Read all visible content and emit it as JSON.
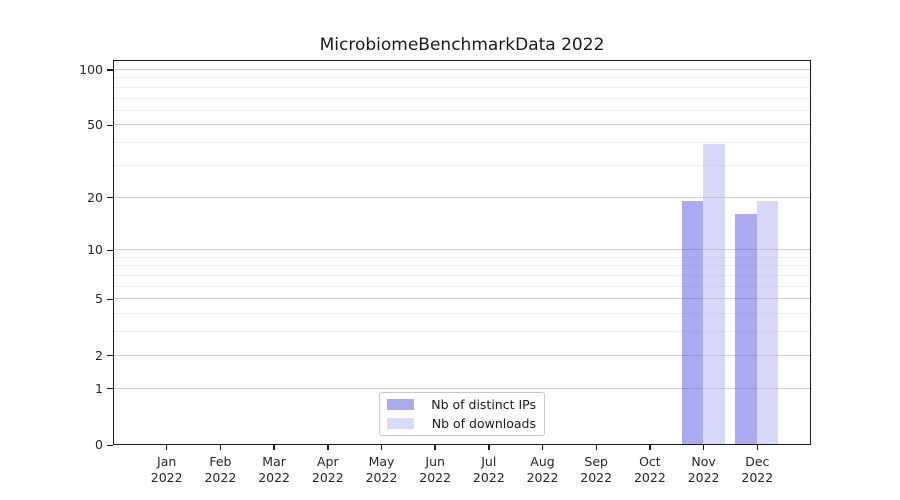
{
  "title": "MicrobiomeBenchmarkData 2022",
  "chart_data": {
    "type": "bar",
    "title": "MicrobiomeBenchmarkData 2022",
    "categories": [
      "Jan 2022",
      "Feb 2022",
      "Mar 2022",
      "Apr 2022",
      "May 2022",
      "Jun 2022",
      "Jul 2022",
      "Aug 2022",
      "Sep 2022",
      "Oct 2022",
      "Nov 2022",
      "Dec 2022"
    ],
    "series": [
      {
        "name": "Nb of distinct IPs",
        "fill": "rgba(85,85,225,0.5)",
        "legend_color": "#aaaaef",
        "values": [
          0,
          0,
          0,
          0,
          0,
          0,
          0,
          0,
          0,
          0,
          19,
          16
        ]
      },
      {
        "name": "Nb of downloads",
        "fill": "rgba(177,177,241,0.5)",
        "legend_color": "#d9d9f8",
        "values": [
          0,
          0,
          0,
          0,
          0,
          0,
          0,
          0,
          0,
          0,
          39,
          19
        ]
      }
    ],
    "yscale": "log1p",
    "ylim": [
      0,
      113
    ],
    "yticks_major": [
      0,
      1,
      2,
      5,
      10,
      20,
      50,
      100
    ],
    "yticks_minor": [
      3,
      4,
      6,
      7,
      8,
      9,
      30,
      40,
      60,
      70,
      80,
      90
    ],
    "grid": "horizontal",
    "legend_position": "lower center",
    "colors": {
      "spine": "#1a1a1a",
      "grid_major": "#cfcfcf",
      "grid_minor": "#efefef",
      "tick_label": "#262626",
      "background": "#ffffff"
    }
  }
}
